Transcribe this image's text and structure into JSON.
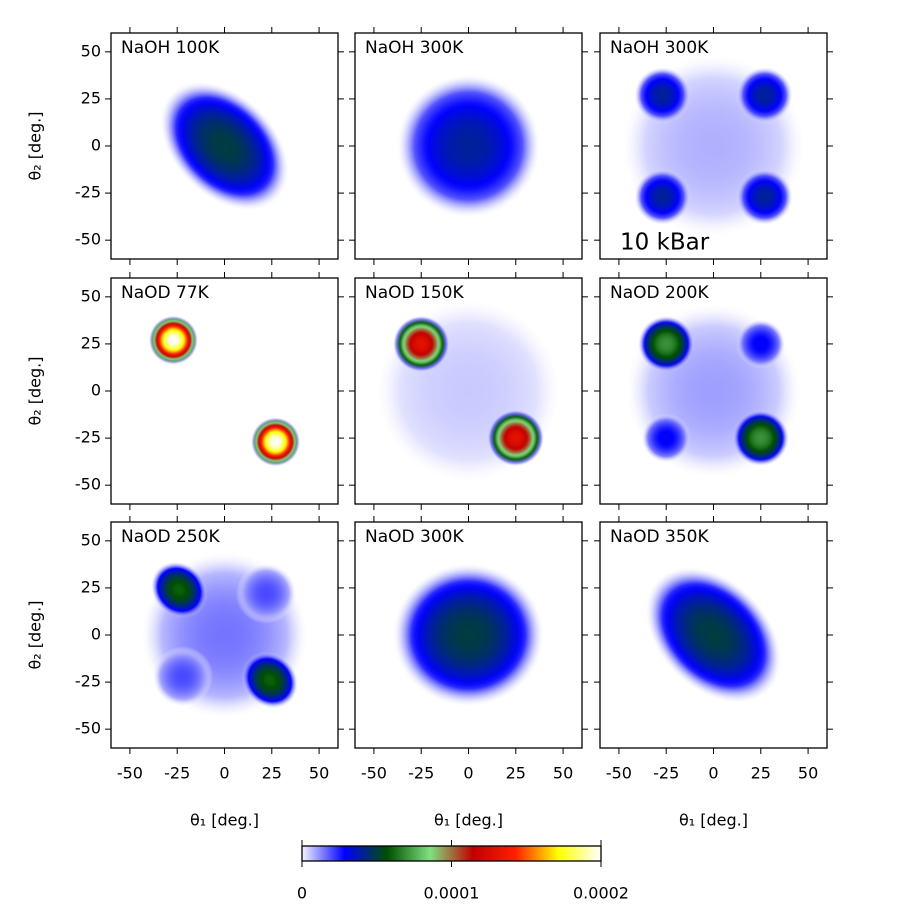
{
  "chart_data": [
    {
      "type": "heatmap",
      "title": "NaOH 100K",
      "ylabel": "θ₂ [deg.]",
      "xlim": [
        -60,
        60
      ],
      "ylim": [
        -60,
        60
      ],
      "xticks": [
        -50,
        -25,
        0,
        25,
        50
      ],
      "yticks": [
        -50,
        -25,
        0,
        25,
        50
      ],
      "blobs": [
        {
          "x": 0,
          "y": 0,
          "peak": 5e-05,
          "rx": 40,
          "ry": 27,
          "angle": -45
        }
      ]
    },
    {
      "type": "heatmap",
      "title": "NaOH 300K",
      "xlim": [
        -60,
        60
      ],
      "ylim": [
        -60,
        60
      ],
      "xticks": [
        -50,
        -25,
        0,
        25,
        50
      ],
      "yticks": [
        -50,
        -25,
        0,
        25,
        50
      ],
      "blobs": [
        {
          "x": 0,
          "y": 0,
          "peak": 4e-05,
          "rx": 38,
          "ry": 38,
          "angle": 0
        }
      ]
    },
    {
      "type": "heatmap",
      "title": "NaOH 300K",
      "annotation": "10 kBar",
      "xlim": [
        -60,
        60
      ],
      "ylim": [
        -60,
        60
      ],
      "xticks": [
        -50,
        -25,
        0,
        25,
        50
      ],
      "yticks": [
        -50,
        -25,
        0,
        25,
        50
      ],
      "blobs": [
        {
          "x": 0,
          "y": 0,
          "peak": 8e-06,
          "rx": 48,
          "ry": 48,
          "angle": 0
        },
        {
          "x": -27,
          "y": 27,
          "peak": 4e-05,
          "rx": 15,
          "ry": 15,
          "angle": 0
        },
        {
          "x": 27,
          "y": 27,
          "peak": 4e-05,
          "rx": 15,
          "ry": 15,
          "angle": 0
        },
        {
          "x": -27,
          "y": -27,
          "peak": 4e-05,
          "rx": 15,
          "ry": 15,
          "angle": 0
        },
        {
          "x": 27,
          "y": -27,
          "peak": 4e-05,
          "rx": 15,
          "ry": 15,
          "angle": 0
        }
      ]
    },
    {
      "type": "heatmap",
      "title": "NaOD 77K",
      "ylabel": "θ₂ [deg.]",
      "xlim": [
        -60,
        60
      ],
      "ylim": [
        -60,
        60
      ],
      "xticks": [
        -50,
        -25,
        0,
        25,
        50
      ],
      "yticks": [
        -50,
        -25,
        0,
        25,
        50
      ],
      "blobs": [
        {
          "x": -27,
          "y": 27,
          "peak": 0.0002,
          "rx": 13,
          "ry": 13,
          "angle": 0
        },
        {
          "x": 27,
          "y": -27,
          "peak": 0.0002,
          "rx": 13,
          "ry": 13,
          "angle": 0
        }
      ]
    },
    {
      "type": "heatmap",
      "title": "NaOD 150K",
      "xlim": [
        -60,
        60
      ],
      "ylim": [
        -60,
        60
      ],
      "xticks": [
        -50,
        -25,
        0,
        25,
        50
      ],
      "yticks": [
        -50,
        -25,
        0,
        25,
        50
      ],
      "blobs": [
        {
          "x": 0,
          "y": 0,
          "peak": 5e-06,
          "rx": 48,
          "ry": 48,
          "angle": 0
        },
        {
          "x": -25,
          "y": 25,
          "peak": 0.00013,
          "rx": 15,
          "ry": 15,
          "angle": 0
        },
        {
          "x": 25,
          "y": -25,
          "peak": 0.00013,
          "rx": 15,
          "ry": 15,
          "angle": 0
        }
      ]
    },
    {
      "type": "heatmap",
      "title": "NaOD 200K",
      "xlim": [
        -60,
        60
      ],
      "ylim": [
        -60,
        60
      ],
      "xticks": [
        -50,
        -25,
        0,
        25,
        50
      ],
      "yticks": [
        -50,
        -25,
        0,
        25,
        50
      ],
      "blobs": [
        {
          "x": 0,
          "y": 0,
          "peak": 1e-05,
          "rx": 46,
          "ry": 46,
          "angle": 0
        },
        {
          "x": 25,
          "y": 25,
          "peak": 3e-05,
          "rx": 13,
          "ry": 13,
          "angle": 0
        },
        {
          "x": -25,
          "y": -25,
          "peak": 3e-05,
          "rx": 13,
          "ry": 13,
          "angle": 0
        },
        {
          "x": -25,
          "y": 25,
          "peak": 7e-05,
          "rx": 15,
          "ry": 15,
          "angle": 0
        },
        {
          "x": 25,
          "y": -25,
          "peak": 7e-05,
          "rx": 15,
          "ry": 15,
          "angle": 0
        }
      ]
    },
    {
      "type": "heatmap",
      "title": "NaOD 250K",
      "ylabel": "θ₂ [deg.]",
      "xlabel": "θ₁ [deg.]",
      "xlim": [
        -60,
        60
      ],
      "ylim": [
        -60,
        60
      ],
      "xticks": [
        -50,
        -25,
        0,
        25,
        50
      ],
      "yticks": [
        -50,
        -25,
        0,
        25,
        50
      ],
      "blobs": [
        {
          "x": 0,
          "y": 0,
          "peak": 1.5e-05,
          "rx": 44,
          "ry": 44,
          "angle": 0
        },
        {
          "x": 22,
          "y": 22,
          "peak": 2e-05,
          "rx": 16,
          "ry": 16,
          "angle": 0
        },
        {
          "x": -22,
          "y": -22,
          "peak": 2e-05,
          "rx": 16,
          "ry": 16,
          "angle": 0
        },
        {
          "x": -24,
          "y": 24,
          "peak": 6e-05,
          "rx": 16,
          "ry": 14,
          "angle": -45
        },
        {
          "x": 24,
          "y": -24,
          "peak": 6e-05,
          "rx": 16,
          "ry": 14,
          "angle": -45
        }
      ]
    },
    {
      "type": "heatmap",
      "title": "NaOD 300K",
      "xlabel": "θ₁ [deg.]",
      "xlim": [
        -60,
        60
      ],
      "ylim": [
        -60,
        60
      ],
      "xticks": [
        -50,
        -25,
        0,
        25,
        50
      ],
      "yticks": [
        -50,
        -25,
        0,
        25,
        50
      ],
      "blobs": [
        {
          "x": 0,
          "y": 0,
          "peak": 5e-05,
          "rx": 40,
          "ry": 38,
          "angle": 0
        }
      ]
    },
    {
      "type": "heatmap",
      "title": "NaOD 350K",
      "xlabel": "θ₁ [deg.]",
      "xlim": [
        -60,
        60
      ],
      "ylim": [
        -60,
        60
      ],
      "xticks": [
        -50,
        -25,
        0,
        25,
        50
      ],
      "yticks": [
        -50,
        -25,
        0,
        25,
        50
      ],
      "blobs": [
        {
          "x": 0,
          "y": 0,
          "peak": 5e-05,
          "rx": 42,
          "ry": 29,
          "angle": -45
        }
      ]
    }
  ],
  "colorbar": {
    "clim": [
      0,
      0.0002
    ],
    "ticks": [
      0,
      0.0001,
      0.0002
    ],
    "colormap": [
      "#f4f4ff",
      "#0000ff",
      "#005000",
      "#80e080",
      "#c00000",
      "#ff2000",
      "#ffff00",
      "#ffffff"
    ]
  }
}
